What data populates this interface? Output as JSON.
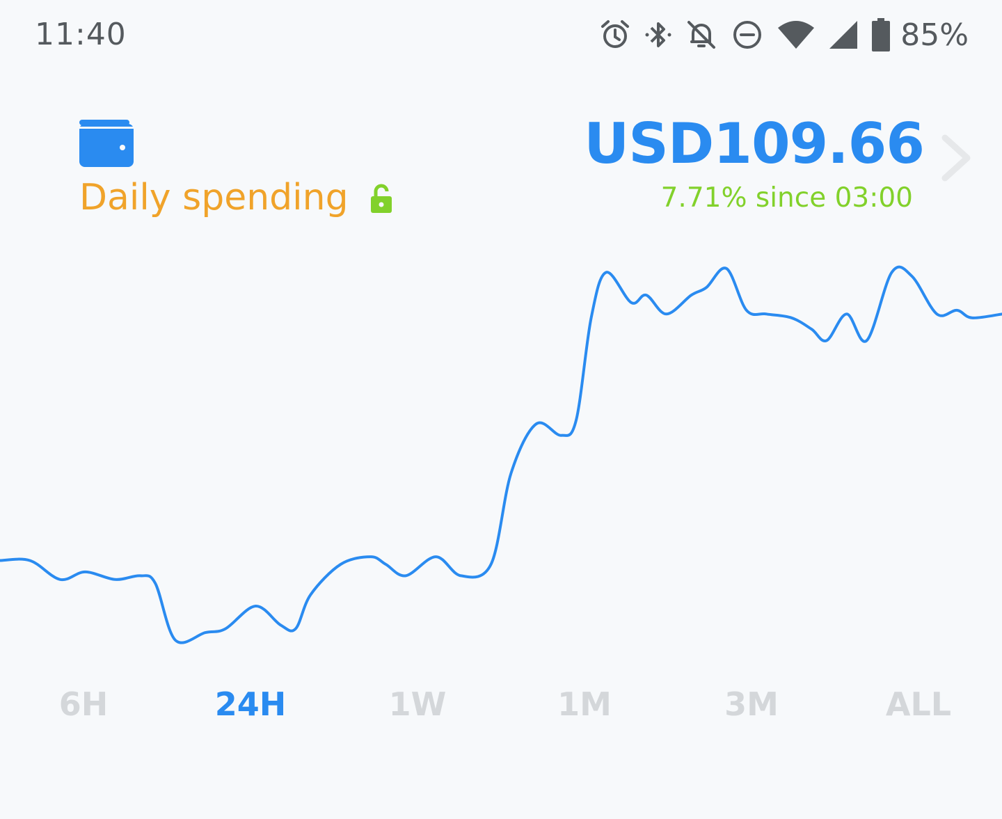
{
  "status_bar": {
    "time": "11:40",
    "icons": [
      "alarm-icon",
      "bluetooth-icon",
      "notifications-off-icon",
      "do-not-disturb-icon",
      "wifi-icon",
      "cell-signal-icon",
      "battery-icon"
    ],
    "battery": "85%"
  },
  "wallet": {
    "icon": "wallet-icon",
    "name": "Daily spending",
    "lock_icon": "unlock-icon",
    "balance": "USD109.66",
    "change": "7.71% since 03:00"
  },
  "colors": {
    "accent": "#2a8bf0",
    "wallet_name": "#f0a32a",
    "positive": "#82d12b",
    "lock": "#82d12b",
    "inactive_tab": "#d4d7da",
    "background": "#f7f9fb"
  },
  "chart_data": {
    "type": "line",
    "x_range": [
      0,
      1
    ],
    "y_range": [
      0,
      1
    ],
    "grid": false,
    "series": [
      {
        "color": "#2a8bf0",
        "points": [
          [
            0,
            0.21
          ],
          [
            0.03,
            0.21
          ],
          [
            0.06,
            0.16
          ],
          [
            0.085,
            0.18
          ],
          [
            0.115,
            0.16
          ],
          [
            0.14,
            0.17
          ],
          [
            0.155,
            0.15
          ],
          [
            0.175,
            0.0
          ],
          [
            0.205,
            0.02
          ],
          [
            0.225,
            0.03
          ],
          [
            0.255,
            0.09
          ],
          [
            0.28,
            0.04
          ],
          [
            0.295,
            0.03
          ],
          [
            0.31,
            0.12
          ],
          [
            0.34,
            0.2
          ],
          [
            0.37,
            0.22
          ],
          [
            0.385,
            0.2
          ],
          [
            0.405,
            0.17
          ],
          [
            0.435,
            0.22
          ],
          [
            0.46,
            0.17
          ],
          [
            0.49,
            0.2
          ],
          [
            0.51,
            0.44
          ],
          [
            0.535,
            0.57
          ],
          [
            0.56,
            0.54
          ],
          [
            0.575,
            0.58
          ],
          [
            0.59,
            0.85
          ],
          [
            0.605,
            0.97
          ],
          [
            0.63,
            0.89
          ],
          [
            0.645,
            0.91
          ],
          [
            0.665,
            0.86
          ],
          [
            0.69,
            0.91
          ],
          [
            0.705,
            0.93
          ],
          [
            0.725,
            0.98
          ],
          [
            0.745,
            0.87
          ],
          [
            0.765,
            0.86
          ],
          [
            0.79,
            0.85
          ],
          [
            0.81,
            0.82
          ],
          [
            0.825,
            0.79
          ],
          [
            0.845,
            0.86
          ],
          [
            0.865,
            0.79
          ],
          [
            0.89,
            0.97
          ],
          [
            0.91,
            0.96
          ],
          [
            0.935,
            0.86
          ],
          [
            0.955,
            0.87
          ],
          [
            0.97,
            0.85
          ],
          [
            1.0,
            0.86
          ]
        ]
      }
    ]
  },
  "range_tabs": [
    {
      "label": "6H",
      "active": false
    },
    {
      "label": "24H",
      "active": true
    },
    {
      "label": "1W",
      "active": false
    },
    {
      "label": "1M",
      "active": false
    },
    {
      "label": "3M",
      "active": false
    },
    {
      "label": "ALL",
      "active": false
    }
  ]
}
